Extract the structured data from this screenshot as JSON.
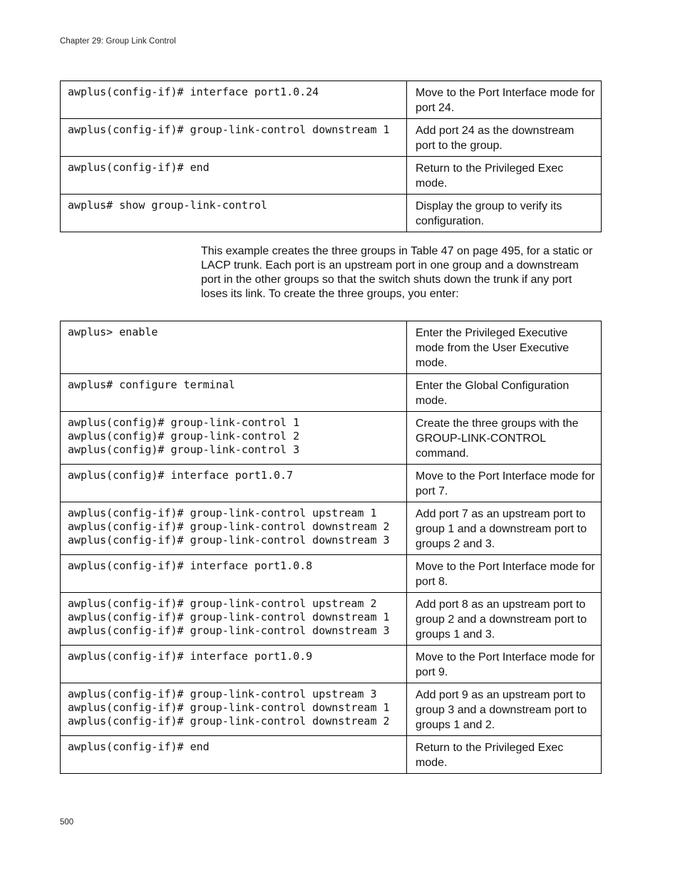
{
  "page": {
    "header_text": "Chapter 29: Group Link Control",
    "page_number": "500",
    "intro_paragraph": "This example creates the three groups in Table 47 on page 495, for a static or LACP trunk. Each port is an upstream port in one group and a downstream port in the other groups so that the switch shuts down the trunk if any port loses its link. To create the three groups, you enter:"
  },
  "colors": {
    "background": "#ffffff",
    "text": "#111111",
    "table_border": "#000000"
  },
  "table1": {
    "rows": [
      {
        "commands": [
          "awplus(config-if)# interface port1.0.24"
        ],
        "description": "Move to the Port Interface mode for port 24."
      },
      {
        "commands": [
          "awplus(config-if)# group-link-control downstream 1"
        ],
        "description": "Add port 24 as the downstream port to the group."
      },
      {
        "commands": [
          "awplus(config-if)# end"
        ],
        "description": "Return to the Privileged Exec mode."
      },
      {
        "commands": [
          "awplus# show group-link-control"
        ],
        "description": "Display the group to verify its configuration."
      }
    ]
  },
  "table2": {
    "rows": [
      {
        "commands": [
          "awplus> enable"
        ],
        "description": "Enter the Privileged Executive mode from the User Executive mode."
      },
      {
        "commands": [
          "awplus# configure terminal"
        ],
        "description": "Enter the Global Configuration mode."
      },
      {
        "commands": [
          "awplus(config)# group-link-control 1",
          "awplus(config)# group-link-control 2",
          "awplus(config)# group-link-control 3"
        ],
        "description": "Create the three groups with the GROUP-LINK-CONTROL command."
      },
      {
        "commands": [
          "awplus(config)# interface port1.0.7"
        ],
        "description": "Move to the Port Interface mode for port 7."
      },
      {
        "commands": [
          "awplus(config-if)# group-link-control upstream 1",
          "awplus(config-if)# group-link-control downstream 2",
          "awplus(config-if)# group-link-control downstream 3"
        ],
        "description": "Add port 7 as an upstream port to group 1 and a downstream port to groups 2 and 3."
      },
      {
        "commands": [
          "awplus(config-if)# interface port1.0.8"
        ],
        "description": "Move to the Port Interface mode for port 8."
      },
      {
        "commands": [
          "awplus(config-if)# group-link-control upstream 2",
          "awplus(config-if)# group-link-control downstream 1",
          "awplus(config-if)# group-link-control downstream 3"
        ],
        "description": "Add port 8 as an upstream port to group 2 and a downstream port to groups 1 and 3."
      },
      {
        "commands": [
          "awplus(config-if)# interface port1.0.9"
        ],
        "description": "Move to the Port Interface mode for port 9."
      },
      {
        "commands": [
          "awplus(config-if)# group-link-control upstream 3",
          "awplus(config-if)# group-link-control downstream 1",
          "awplus(config-if)# group-link-control downstream 2"
        ],
        "description": "Add port 9 as an upstream port to group 3 and a downstream port to groups 1 and 2."
      },
      {
        "commands": [
          "awplus(config-if)# end"
        ],
        "description": "Return to the Privileged Exec mode."
      }
    ]
  }
}
